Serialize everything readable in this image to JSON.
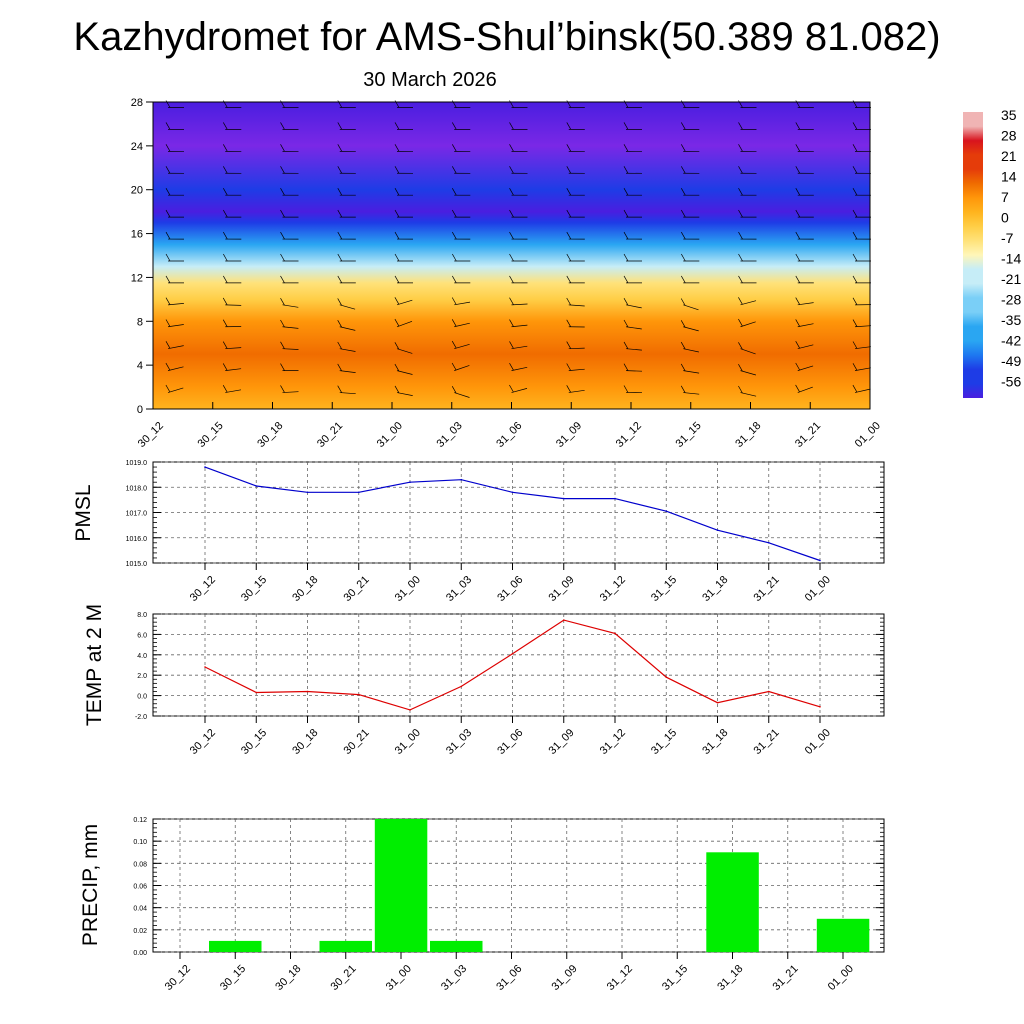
{
  "title": "Kazhydromet for AMS-Shul’binsk(50.389 81.082)",
  "subtitle": "30 March 2026",
  "time_labels": [
    "30_12",
    "30_15",
    "30_18",
    "30_21",
    "31_00",
    "31_03",
    "31_06",
    "31_09",
    "31_12",
    "31_15",
    "31_18",
    "31_21",
    "01_00"
  ],
  "colors": {
    "pmsl_line": "#0000cc",
    "temp_line": "#dd0000",
    "precip_bar": "#00ee00",
    "wind_barb": "#000000"
  },
  "chart_data": [
    {
      "type": "heatmap",
      "name": "temperature-height-section",
      "title": "",
      "xlabel": "",
      "ylabel": "",
      "ylim": [
        0,
        28
      ],
      "y_ticks": [
        0,
        4,
        8,
        12,
        16,
        20,
        24,
        28
      ],
      "colorbar": {
        "labels": [
          "35",
          "28",
          "21",
          "14",
          "7",
          "0",
          "-7",
          "-14",
          "-21",
          "-28",
          "-35",
          "-42",
          "-49",
          "-56"
        ],
        "range": [
          -56,
          35
        ]
      },
      "temperature_profile": [
        {
          "level": 0,
          "value": 5
        },
        {
          "level": 2,
          "value": 9
        },
        {
          "level": 5,
          "value": 11
        },
        {
          "level": 8,
          "value": 6
        },
        {
          "level": 10,
          "value": 0
        },
        {
          "level": 11.5,
          "value": -7
        },
        {
          "level": 13,
          "value": -18
        },
        {
          "level": 15,
          "value": -32
        },
        {
          "level": 17,
          "value": -48
        },
        {
          "level": 18,
          "value": -54
        },
        {
          "level": 20,
          "value": -50
        },
        {
          "level": 24,
          "value": -58
        },
        {
          "level": 28,
          "value": -55
        }
      ],
      "wind_barbs": "wind barbs at each time step and level"
    },
    {
      "type": "line",
      "name": "pmsl",
      "ylabel": "PMSL",
      "ylim": [
        1015.0,
        1019.0
      ],
      "y_tick_labels": [
        "1015.0",
        "1016.0",
        "1017.0",
        "1018.0",
        "1019.0"
      ],
      "values": [
        1018.8,
        1018.05,
        1017.8,
        1017.8,
        1018.2,
        1018.3,
        1017.8,
        1017.55,
        1017.55,
        1017.05,
        1016.3,
        1015.8,
        1015.1
      ]
    },
    {
      "type": "line",
      "name": "temp-2m",
      "ylabel": "TEMP at 2 M",
      "ylim": [
        -2.0,
        8.0
      ],
      "y_tick_labels": [
        "-2.0",
        "0.0",
        "2.0",
        "4.0",
        "6.0",
        "8.0"
      ],
      "values": [
        2.8,
        0.3,
        0.4,
        0.1,
        -1.4,
        0.9,
        4.1,
        7.4,
        6.1,
        1.8,
        -0.7,
        0.4,
        -1.1
      ]
    },
    {
      "type": "bar",
      "name": "precip",
      "ylabel": "PRECIP, mm",
      "ylim": [
        0,
        0.12
      ],
      "y_tick_labels": [
        "0.00",
        "0.02",
        "0.04",
        "0.06",
        "0.08",
        "0.10",
        "0.12"
      ],
      "values": [
        0,
        0.01,
        0,
        0.01,
        0.12,
        0.01,
        0,
        0,
        0,
        0,
        0.09,
        0,
        0.03
      ]
    }
  ]
}
